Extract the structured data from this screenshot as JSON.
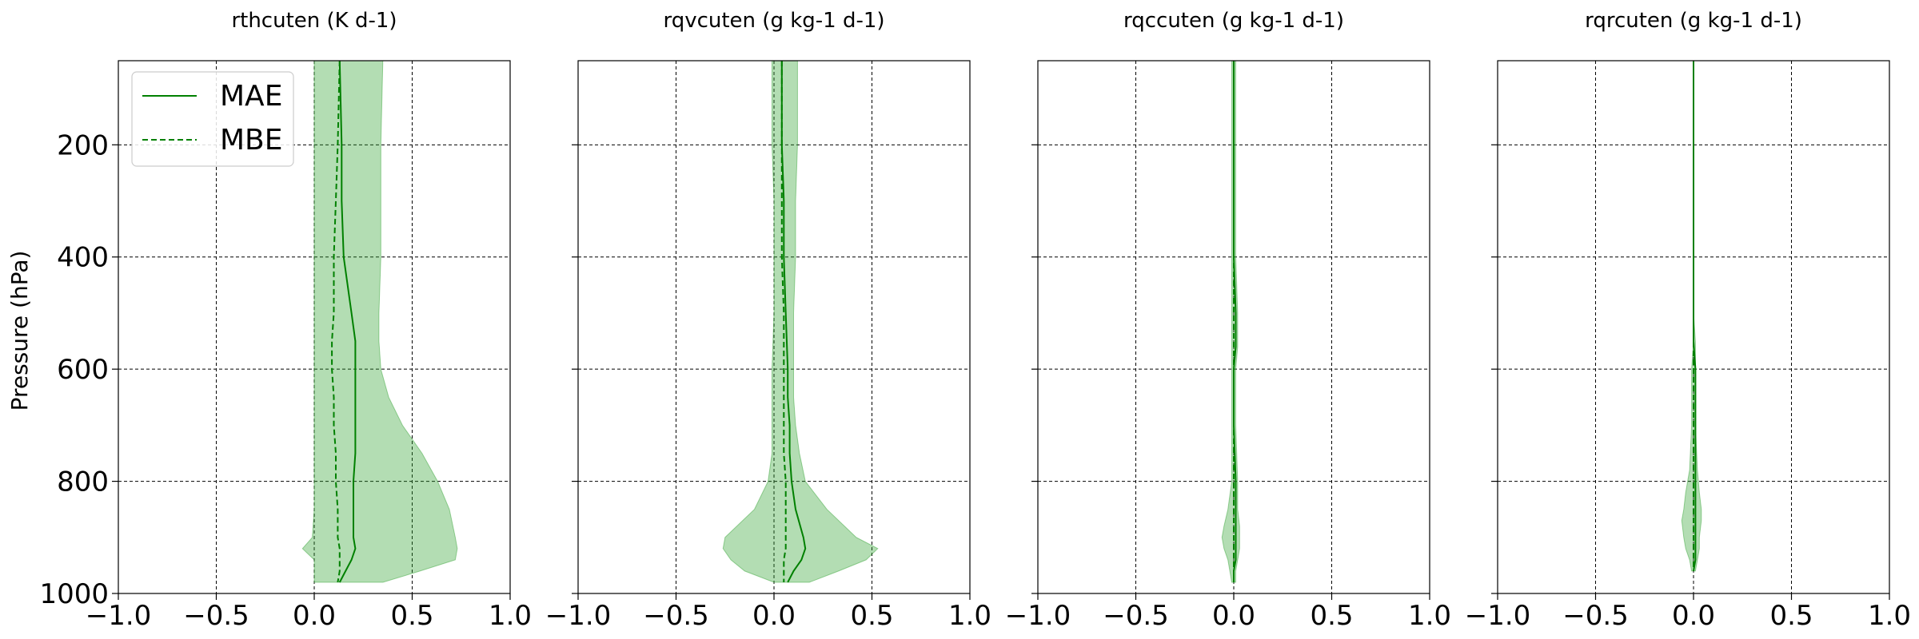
{
  "chart_data": {
    "type": "line",
    "ylabel": "Pressure (hPa)",
    "ylim": [
      1000,
      50
    ],
    "y_inverted": true,
    "yticks": [
      200,
      400,
      600,
      800,
      1000
    ],
    "xlim": [
      -1.0,
      1.0
    ],
    "xticks": [
      -1.0,
      -0.5,
      0.0,
      0.5,
      1.0
    ],
    "xtick_labels": [
      "−1.0",
      "−0.5",
      "0.0",
      "0.5",
      "1.0"
    ],
    "grid": true,
    "colors": {
      "line": "#008000",
      "fill": "#2ca02c",
      "fill_alpha": 0.36
    },
    "legend": {
      "location": "upper-left",
      "panel": 0,
      "entries": [
        {
          "label": "MAE",
          "style": "solid"
        },
        {
          "label": "MBE",
          "style": "dashed"
        }
      ]
    },
    "panels": [
      {
        "title": "rthcuten (K d-1)",
        "y": [
          50,
          200,
          300,
          400,
          500,
          550,
          600,
          650,
          700,
          750,
          800,
          850,
          900,
          920,
          940,
          960,
          980
        ],
        "mae": [
          0.13,
          0.14,
          0.14,
          0.15,
          0.19,
          0.21,
          0.21,
          0.21,
          0.21,
          0.21,
          0.2,
          0.2,
          0.2,
          0.21,
          0.19,
          0.16,
          0.13
        ],
        "mbe": [
          0.13,
          0.12,
          0.11,
          0.1,
          0.1,
          0.09,
          0.09,
          0.1,
          0.1,
          0.11,
          0.11,
          0.12,
          0.12,
          0.13,
          0.13,
          0.13,
          0.12
        ],
        "band_low": [
          0.0,
          0.0,
          0.0,
          0.0,
          0.0,
          0.0,
          0.0,
          0.0,
          0.0,
          0.0,
          0.0,
          0.0,
          -0.01,
          -0.06,
          0.0,
          0.0,
          0.0
        ],
        "band_high": [
          0.35,
          0.34,
          0.34,
          0.34,
          0.33,
          0.33,
          0.34,
          0.38,
          0.45,
          0.55,
          0.63,
          0.69,
          0.72,
          0.73,
          0.72,
          0.54,
          0.35
        ]
      },
      {
        "title": "rqvcuten (g kg-1 d-1)",
        "y": [
          50,
          200,
          300,
          400,
          500,
          600,
          650,
          700,
          750,
          800,
          850,
          900,
          920,
          940,
          960,
          980
        ],
        "mae": [
          0.04,
          0.04,
          0.05,
          0.05,
          0.06,
          0.07,
          0.07,
          0.08,
          0.08,
          0.09,
          0.11,
          0.15,
          0.16,
          0.14,
          0.1,
          0.07
        ],
        "mbe": [
          0.04,
          0.04,
          0.04,
          0.04,
          0.05,
          0.05,
          0.05,
          0.05,
          0.05,
          0.06,
          0.06,
          0.06,
          0.06,
          0.05,
          0.05,
          0.05
        ],
        "band_low": [
          -0.01,
          -0.01,
          0.0,
          0.0,
          0.0,
          -0.01,
          -0.01,
          -0.01,
          -0.01,
          -0.03,
          -0.1,
          -0.25,
          -0.26,
          -0.22,
          -0.15,
          0.0
        ],
        "band_high": [
          0.12,
          0.12,
          0.11,
          0.11,
          0.1,
          0.1,
          0.1,
          0.11,
          0.13,
          0.16,
          0.27,
          0.42,
          0.53,
          0.47,
          0.33,
          0.18
        ]
      },
      {
        "title": "rqccuten (g kg-1 d-1)",
        "y": [
          50,
          200,
          300,
          400,
          500,
          520,
          560,
          600,
          700,
          800,
          850,
          880,
          900,
          920,
          940,
          960,
          980
        ],
        "mae": [
          0.0,
          0.0,
          0.0,
          0.0,
          0.01,
          0.01,
          0.01,
          0.0,
          0.0,
          0.01,
          0.01,
          0.01,
          0.01,
          0.01,
          0.01,
          0.0,
          0.0
        ],
        "mbe": [
          0.0,
          0.0,
          0.0,
          0.0,
          0.0,
          0.0,
          0.0,
          0.0,
          0.0,
          0.0,
          0.0,
          0.0,
          0.0,
          0.0,
          0.0,
          0.0,
          0.0
        ],
        "band_low": [
          -0.01,
          -0.01,
          -0.01,
          -0.01,
          -0.01,
          -0.01,
          -0.01,
          -0.01,
          -0.01,
          -0.01,
          -0.03,
          -0.05,
          -0.06,
          -0.05,
          -0.03,
          -0.02,
          -0.01
        ],
        "band_high": [
          0.01,
          0.01,
          0.01,
          0.01,
          0.02,
          0.02,
          0.02,
          0.01,
          0.01,
          0.02,
          0.02,
          0.03,
          0.03,
          0.03,
          0.02,
          0.01,
          0.01
        ]
      },
      {
        "title": "rqrcuten (g kg-1 d-1)",
        "y": [
          50,
          200,
          300,
          400,
          500,
          550,
          600,
          700,
          780,
          820,
          850,
          870,
          900,
          920,
          940,
          960
        ],
        "mae": [
          0.0,
          0.0,
          0.0,
          0.0,
          0.0,
          0.0,
          0.01,
          0.01,
          0.01,
          0.01,
          0.01,
          0.01,
          0.01,
          0.01,
          0.01,
          0.0
        ],
        "mbe": [
          0.0,
          0.0,
          0.0,
          0.0,
          0.0,
          0.0,
          0.0,
          0.0,
          0.0,
          0.0,
          0.0,
          0.0,
          0.0,
          0.0,
          0.0,
          0.0
        ],
        "band_low": [
          0.0,
          0.0,
          0.0,
          0.0,
          0.0,
          0.0,
          -0.01,
          -0.01,
          -0.02,
          -0.04,
          -0.05,
          -0.06,
          -0.05,
          -0.04,
          -0.02,
          -0.01
        ],
        "band_high": [
          0.0,
          0.0,
          0.0,
          0.0,
          0.0,
          0.01,
          0.01,
          0.01,
          0.02,
          0.03,
          0.04,
          0.04,
          0.03,
          0.03,
          0.02,
          0.01
        ]
      }
    ]
  }
}
